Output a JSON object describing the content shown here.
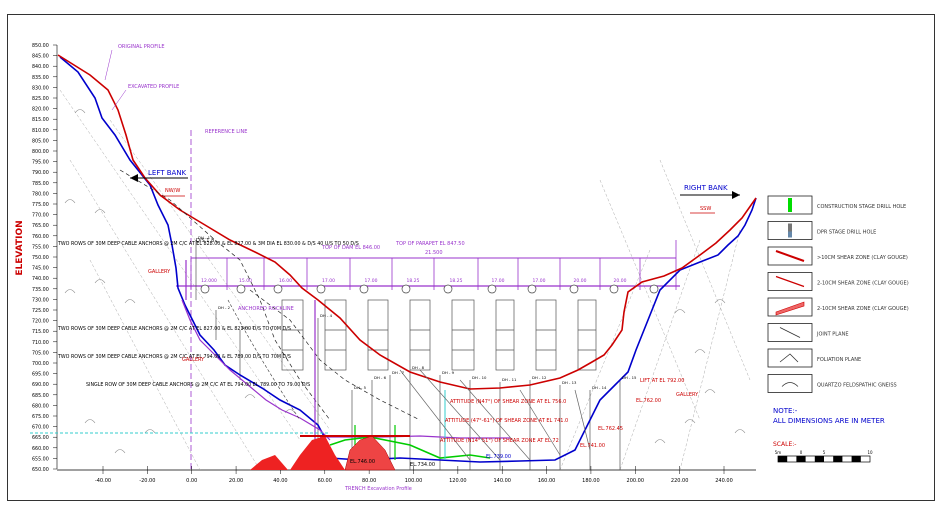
{
  "title_axis": "ELEVATION",
  "y_ticks": [
    "850.00",
    "845.00",
    "840.00",
    "835.00",
    "830.00",
    "825.00",
    "820.00",
    "815.00",
    "810.00",
    "805.00",
    "800.00",
    "795.00",
    "790.00",
    "785.00",
    "780.00",
    "775.00",
    "770.00",
    "765.00",
    "760.00",
    "755.00",
    "750.00",
    "745.00",
    "740.00",
    "735.00",
    "730.00",
    "725.00",
    "720.00",
    "715.00",
    "710.00",
    "705.00",
    "700.00",
    "695.00",
    "690.00",
    "685.00",
    "680.00",
    "675.00",
    "670.00",
    "665.00",
    "660.00",
    "655.00",
    "650.00"
  ],
  "x_ticks": [
    "-40.00",
    "-20.00",
    "0.00",
    "20.00",
    "40.00",
    "60.00",
    "80.00",
    "100.00",
    "120.00",
    "140.00",
    "160.00",
    "180.00",
    "200.00",
    "220.00",
    "240.00"
  ],
  "labels": {
    "original_profile": "ORIGINAL PROFILE",
    "excavated_profile": "EXCAVATED PROFILE",
    "reference_line": "REFERENCE LINE",
    "left_bank": "LEFT BANK",
    "right_bank": "RIGHT BANK",
    "nw_left": "NW/W",
    "sw_right": "SSW",
    "top_of_dam": "TOP OF DAM EL 846.00",
    "top_of_parapet": "TOP OF PARAPET EL 847.50",
    "dim_21500": "21.500",
    "anchors_1": "TWO ROWS OF 30M DEEP CABLE ANCHORS @ 2M C/C AT EL 828.00 & EL 827.00 & 3M DIA EL 830.00 & D/S 40 U/S TO 50 D/S",
    "anchors_2": "TWO ROWS OF 30M DEEP CABLE ANCHORS @ 2M C/C AT EL 827.00 & EL 821.00 D/S TO 70M D/S",
    "anchors_3": "TWO ROWS OF 30M DEEP CABLE ANCHORS @ 2M C/C AT EL 794.00 & EL 789.00 D/S TO 70M D/S",
    "anchors_4": "SINGLE ROW OF 30M DEEP CABLE ANCHORS @ 2M C/C AT EL 794.00 EL 789.00 TO 79.00 D/S",
    "gallery_left": "GALLERY",
    "gallery_left2": "GALLERY",
    "anchored_rockline": "ANCHORED ROCKLINE",
    "shear_1": "ATTITUDE (N47°) OF SHEAR ZONE AT EL 756.0",
    "shear_2": "ATTITUDE (47°-61°) OF SHEAR ZONE AT EL 741.0",
    "shear_3": "ATTITUDE (N14° 51°) OF SHEAR ZONE AT EL 72",
    "drift_left": "D/S 1.8",
    "lift_right": "LIFT AT EL 792.00",
    "gallery_right": "GALLERY",
    "el_76200": "EL.762.00",
    "el_74100": "EL.741.00",
    "el_73900": "EL.739.00",
    "el_74600": "EL.746.00",
    "el_73400": "EL.734.00",
    "el_76245": "EL.762.45",
    "excavation_profile": "TRENCH Excavation Profile",
    "note_title": "NOTE:-",
    "note_body": "ALL DIMENSIONS ARE IN METER",
    "scale": "SCALE:-",
    "bay_dims": [
      "12.000",
      "15.00",
      "16.00",
      "17.00",
      "17.00",
      "18.25",
      "18.25",
      "17.00",
      "17.00",
      "20.00",
      "20.00"
    ],
    "dh_labels": [
      "DH - 1",
      "DH - 2",
      "DH - 3",
      "DH - 4",
      "DH - 5",
      "DH - 6",
      "DH - 7",
      "DH - 8",
      "DH - 9",
      "DH - 10",
      "DH - 11",
      "DH - 12",
      "DH - 13",
      "DH - 14",
      "DH - 15"
    ]
  },
  "legend": [
    {
      "label": "CONSTRUCTION STAGE DRILL HOLE",
      "symbol": "drill-green"
    },
    {
      "label": "DPR STAGE DRILL HOLE",
      "symbol": "drill-grey"
    },
    {
      "label": ">10CM SHEAR ZONE (CLAY GOUGE)",
      "symbol": "shear-thick"
    },
    {
      "label": "2-10CM SHEAR ZONE (CLAY GOUGE)",
      "symbol": "shear-mid"
    },
    {
      "label": "2-10CM SHEAR ZONE (CLAY GOUGE)",
      "symbol": "shear-hatch"
    },
    {
      "label": "JOINT PLANE",
      "symbol": "joint"
    },
    {
      "label": "FOLIATION PLANE",
      "symbol": "foliation"
    },
    {
      "label": "QUARTZO FELDSPATHIC GNEISS",
      "symbol": "gneiss"
    }
  ],
  "scale_ticks": [
    "5m",
    "0",
    "5",
    "10"
  ],
  "colors": {
    "original": "#cc0000",
    "excavated": "#0000cc",
    "purple": "#9933cc",
    "green": "#00cc00",
    "cyan": "#33cccc",
    "grey": "#888888"
  }
}
